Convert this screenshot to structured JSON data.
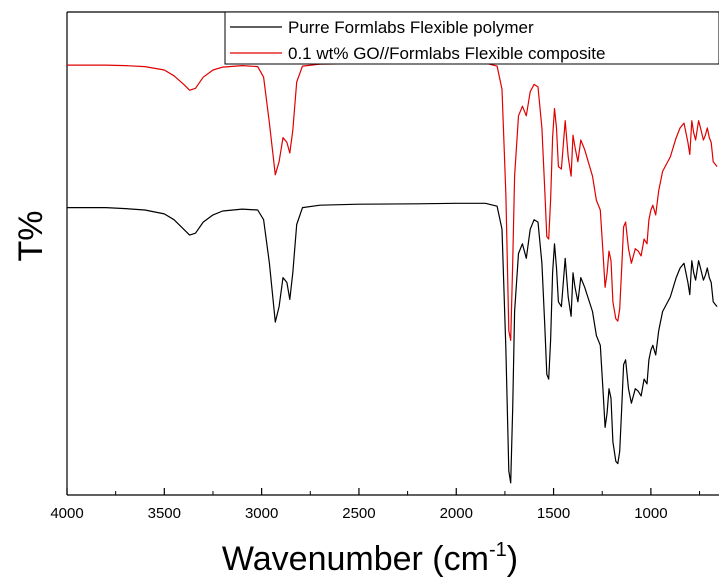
{
  "chart_data": {
    "type": "line",
    "title": "",
    "xlabel": "Wavenumber (cm",
    "xlabel_sup": "-1",
    "xlabel_close": ")",
    "ylabel": "T%",
    "xlim": [
      4000,
      650
    ],
    "x_inverted": true,
    "x_ticks": [
      4000,
      3500,
      3000,
      2500,
      2000,
      1500,
      1000
    ],
    "x_tick_labels": [
      "4000",
      "3500",
      "3000",
      "2500",
      "2000",
      "1500",
      "1000"
    ],
    "y_ticks_shown": false,
    "ylim": [
      0,
      100
    ],
    "grid": false,
    "legend_position": "top-right",
    "series": [
      {
        "name": "Purre Formlabs Flexible polymer",
        "color": "#000000",
        "points": [
          [
            4000,
            59.5
          ],
          [
            3800,
            59.5
          ],
          [
            3700,
            59.3
          ],
          [
            3600,
            59.0
          ],
          [
            3500,
            58.2
          ],
          [
            3450,
            57.0
          ],
          [
            3400,
            55.0
          ],
          [
            3370,
            53.8
          ],
          [
            3340,
            54.2
          ],
          [
            3300,
            56.5
          ],
          [
            3250,
            58.0
          ],
          [
            3200,
            58.8
          ],
          [
            3100,
            59.2
          ],
          [
            3020,
            59.0
          ],
          [
            2990,
            57.0
          ],
          [
            2960,
            48.0
          ],
          [
            2930,
            35.8
          ],
          [
            2910,
            39.0
          ],
          [
            2890,
            45.0
          ],
          [
            2870,
            44.0
          ],
          [
            2855,
            40.5
          ],
          [
            2840,
            46.0
          ],
          [
            2820,
            56.0
          ],
          [
            2790,
            59.5
          ],
          [
            2700,
            60.0
          ],
          [
            2500,
            60.2
          ],
          [
            2200,
            60.3
          ],
          [
            2000,
            60.4
          ],
          [
            1850,
            60.4
          ],
          [
            1790,
            59.8
          ],
          [
            1765,
            55.0
          ],
          [
            1745,
            30.0
          ],
          [
            1730,
            5.0
          ],
          [
            1720,
            2.5
          ],
          [
            1710,
            18.0
          ],
          [
            1700,
            38.0
          ],
          [
            1680,
            50.0
          ],
          [
            1660,
            52.0
          ],
          [
            1640,
            49.0
          ],
          [
            1620,
            55.0
          ],
          [
            1600,
            57.0
          ],
          [
            1580,
            56.5
          ],
          [
            1560,
            48.0
          ],
          [
            1545,
            35.0
          ],
          [
            1535,
            25.0
          ],
          [
            1525,
            24.0
          ],
          [
            1515,
            32.0
          ],
          [
            1505,
            46.0
          ],
          [
            1495,
            52.0
          ],
          [
            1485,
            47.0
          ],
          [
            1475,
            40.0
          ],
          [
            1460,
            39.0
          ],
          [
            1450,
            44.0
          ],
          [
            1440,
            49.0
          ],
          [
            1425,
            41.0
          ],
          [
            1410,
            37.0
          ],
          [
            1400,
            46.0
          ],
          [
            1390,
            43.0
          ],
          [
            1375,
            40.0
          ],
          [
            1360,
            45.0
          ],
          [
            1340,
            43.0
          ],
          [
            1300,
            38.0
          ],
          [
            1280,
            33.0
          ],
          [
            1260,
            31.0
          ],
          [
            1245,
            21.0
          ],
          [
            1235,
            14.0
          ],
          [
            1225,
            17.0
          ],
          [
            1215,
            22.0
          ],
          [
            1205,
            20.0
          ],
          [
            1195,
            11.0
          ],
          [
            1180,
            7.0
          ],
          [
            1170,
            6.5
          ],
          [
            1160,
            9.0
          ],
          [
            1150,
            18.0
          ],
          [
            1140,
            27.0
          ],
          [
            1130,
            28.0
          ],
          [
            1115,
            22.0
          ],
          [
            1100,
            19.0
          ],
          [
            1080,
            22.0
          ],
          [
            1065,
            21.5
          ],
          [
            1050,
            20.5
          ],
          [
            1035,
            24.0
          ],
          [
            1020,
            23.0
          ],
          [
            1010,
            28.0
          ],
          [
            1000,
            30.0
          ],
          [
            990,
            31.0
          ],
          [
            975,
            29.0
          ],
          [
            960,
            34.0
          ],
          [
            940,
            38.0
          ],
          [
            900,
            41.0
          ],
          [
            870,
            45.0
          ],
          [
            850,
            47.0
          ],
          [
            830,
            48.0
          ],
          [
            810,
            44.0
          ],
          [
            800,
            41.5
          ],
          [
            790,
            48.5
          ],
          [
            780,
            46.0
          ],
          [
            770,
            44.5
          ],
          [
            755,
            48.5
          ],
          [
            745,
            47.0
          ],
          [
            730,
            44.5
          ],
          [
            720,
            45.5
          ],
          [
            710,
            47.0
          ],
          [
            700,
            45.0
          ],
          [
            690,
            44.0
          ],
          [
            680,
            40.0
          ],
          [
            670,
            39.5
          ],
          [
            660,
            39.0
          ]
        ]
      },
      {
        "name": "0.1 wt% GO//Formlabs Flexible composite",
        "color": "#e00000",
        "points": [
          [
            4000,
            89.0
          ],
          [
            3800,
            89.0
          ],
          [
            3700,
            88.9
          ],
          [
            3600,
            88.7
          ],
          [
            3500,
            88.0
          ],
          [
            3450,
            86.8
          ],
          [
            3400,
            85.0
          ],
          [
            3370,
            83.8
          ],
          [
            3340,
            84.2
          ],
          [
            3300,
            86.5
          ],
          [
            3250,
            88.0
          ],
          [
            3200,
            88.6
          ],
          [
            3100,
            88.9
          ],
          [
            3020,
            88.7
          ],
          [
            2990,
            86.5
          ],
          [
            2960,
            77.0
          ],
          [
            2930,
            66.3
          ],
          [
            2910,
            69.0
          ],
          [
            2890,
            74.0
          ],
          [
            2870,
            73.0
          ],
          [
            2855,
            70.8
          ],
          [
            2840,
            75.5
          ],
          [
            2820,
            85.5
          ],
          [
            2790,
            88.8
          ],
          [
            2700,
            89.2
          ],
          [
            2500,
            89.3
          ],
          [
            2200,
            89.4
          ],
          [
            2000,
            89.4
          ],
          [
            1850,
            89.4
          ],
          [
            1790,
            88.8
          ],
          [
            1765,
            84.0
          ],
          [
            1745,
            62.0
          ],
          [
            1730,
            34.0
          ],
          [
            1720,
            32.0
          ],
          [
            1710,
            48.0
          ],
          [
            1700,
            66.0
          ],
          [
            1680,
            78.5
          ],
          [
            1660,
            80.5
          ],
          [
            1640,
            78.5
          ],
          [
            1620,
            83.5
          ],
          [
            1600,
            85.0
          ],
          [
            1580,
            84.5
          ],
          [
            1560,
            76.0
          ],
          [
            1545,
            63.0
          ],
          [
            1535,
            53.5
          ],
          [
            1525,
            53.0
          ],
          [
            1515,
            61.0
          ],
          [
            1505,
            74.0
          ],
          [
            1495,
            80.0
          ],
          [
            1485,
            76.0
          ],
          [
            1475,
            68.0
          ],
          [
            1460,
            67.5
          ],
          [
            1450,
            72.5
          ],
          [
            1440,
            77.5
          ],
          [
            1425,
            70.0
          ],
          [
            1410,
            66.0
          ],
          [
            1400,
            74.5
          ],
          [
            1390,
            72.0
          ],
          [
            1375,
            69.0
          ],
          [
            1360,
            73.5
          ],
          [
            1340,
            71.5
          ],
          [
            1300,
            66.0
          ],
          [
            1280,
            61.0
          ],
          [
            1260,
            59.0
          ],
          [
            1245,
            49.5
          ],
          [
            1235,
            43.0
          ],
          [
            1225,
            46.0
          ],
          [
            1215,
            50.5
          ],
          [
            1205,
            48.5
          ],
          [
            1195,
            40.0
          ],
          [
            1180,
            36.5
          ],
          [
            1170,
            36.0
          ],
          [
            1160,
            38.5
          ],
          [
            1150,
            47.0
          ],
          [
            1140,
            55.5
          ],
          [
            1130,
            56.5
          ],
          [
            1115,
            51.0
          ],
          [
            1100,
            48.0
          ],
          [
            1080,
            51.0
          ],
          [
            1065,
            50.5
          ],
          [
            1050,
            49.5
          ],
          [
            1035,
            53.0
          ],
          [
            1020,
            52.0
          ],
          [
            1010,
            57.0
          ],
          [
            1000,
            59.0
          ],
          [
            990,
            60.0
          ],
          [
            975,
            58.0
          ],
          [
            960,
            63.0
          ],
          [
            940,
            67.0
          ],
          [
            900,
            70.0
          ],
          [
            870,
            74.0
          ],
          [
            850,
            76.0
          ],
          [
            830,
            77.0
          ],
          [
            810,
            73.0
          ],
          [
            800,
            70.5
          ],
          [
            790,
            77.5
          ],
          [
            780,
            75.0
          ],
          [
            770,
            73.5
          ],
          [
            755,
            77.5
          ],
          [
            745,
            76.0
          ],
          [
            730,
            73.5
          ],
          [
            720,
            74.5
          ],
          [
            710,
            76.0
          ],
          [
            700,
            74.0
          ],
          [
            690,
            73.0
          ],
          [
            680,
            69.0
          ],
          [
            670,
            68.5
          ],
          [
            660,
            68.0
          ]
        ]
      }
    ]
  }
}
